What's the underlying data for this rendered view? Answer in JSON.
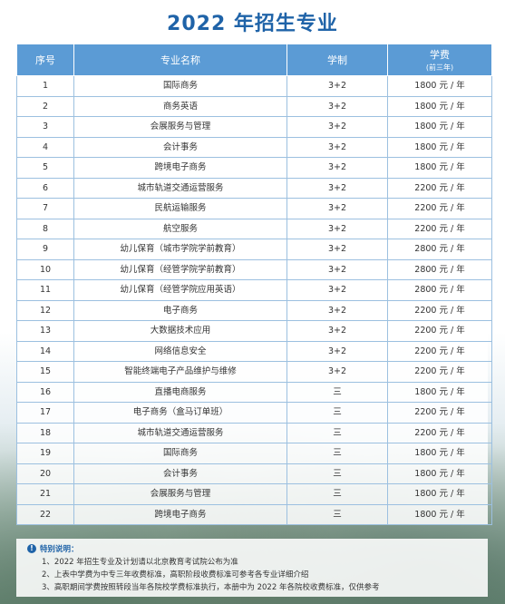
{
  "title": "2022 年招生专业",
  "headers": {
    "no": "序号",
    "name": "专业名称",
    "system": "学制",
    "fee": "学费",
    "fee_sub": "(前三年)"
  },
  "rows": [
    {
      "no": "1",
      "name": "国际商务",
      "system": "3+2",
      "fee": "1800 元 / 年"
    },
    {
      "no": "2",
      "name": "商务英语",
      "system": "3+2",
      "fee": "1800 元 / 年"
    },
    {
      "no": "3",
      "name": "会展服务与管理",
      "system": "3+2",
      "fee": "1800 元 / 年"
    },
    {
      "no": "4",
      "name": "会计事务",
      "system": "3+2",
      "fee": "1800 元 / 年"
    },
    {
      "no": "5",
      "name": "跨境电子商务",
      "system": "3+2",
      "fee": "1800 元 / 年"
    },
    {
      "no": "6",
      "name": "城市轨道交通运营服务",
      "system": "3+2",
      "fee": "2200 元 / 年"
    },
    {
      "no": "7",
      "name": "民航运输服务",
      "system": "3+2",
      "fee": "2200 元 / 年"
    },
    {
      "no": "8",
      "name": "航空服务",
      "system": "3+2",
      "fee": "2200 元 / 年"
    },
    {
      "no": "9",
      "name": "幼儿保育（城市学院学前教育）",
      "system": "3+2",
      "fee": "2800 元 / 年"
    },
    {
      "no": "10",
      "name": "幼儿保育（经管学院学前教育）",
      "system": "3+2",
      "fee": "2800 元 / 年"
    },
    {
      "no": "11",
      "name": "幼儿保育（经管学院应用英语）",
      "system": "3+2",
      "fee": "2800 元 / 年"
    },
    {
      "no": "12",
      "name": "电子商务",
      "system": "3+2",
      "fee": "2200 元 / 年"
    },
    {
      "no": "13",
      "name": "大数据技术应用",
      "system": "3+2",
      "fee": "2200 元 / 年"
    },
    {
      "no": "14",
      "name": "网络信息安全",
      "system": "3+2",
      "fee": "2200 元 / 年"
    },
    {
      "no": "15",
      "name": "智能终端电子产品维护与维修",
      "system": "3+2",
      "fee": "2200 元 / 年"
    },
    {
      "no": "16",
      "name": "直播电商服务",
      "system": "三",
      "fee": "1800 元 / 年"
    },
    {
      "no": "17",
      "name": "电子商务（盒马订单班）",
      "system": "三",
      "fee": "2200 元 / 年"
    },
    {
      "no": "18",
      "name": "城市轨道交通运营服务",
      "system": "三",
      "fee": "2200 元 / 年"
    },
    {
      "no": "19",
      "name": "国际商务",
      "system": "三",
      "fee": "1800 元 / 年"
    },
    {
      "no": "20",
      "name": "会计事务",
      "system": "三",
      "fee": "1800 元 / 年"
    },
    {
      "no": "21",
      "name": "会展服务与管理",
      "system": "三",
      "fee": "1800 元 / 年"
    },
    {
      "no": "22",
      "name": "跨境电子商务",
      "system": "三",
      "fee": "1800 元 / 年"
    }
  ],
  "notes": {
    "heading": "特别说明：",
    "lines": [
      "1、2022 年招生专业及计划请以北京教育考试院公布为准",
      "2、上表中学费为中专三年收费标准，高职阶段收费标准可参考各专业详细介绍",
      "3、高职期间学费按照转段当年各院校学费标准执行，本册中为 2022 年各院校收费标准，仅供参考"
    ]
  }
}
